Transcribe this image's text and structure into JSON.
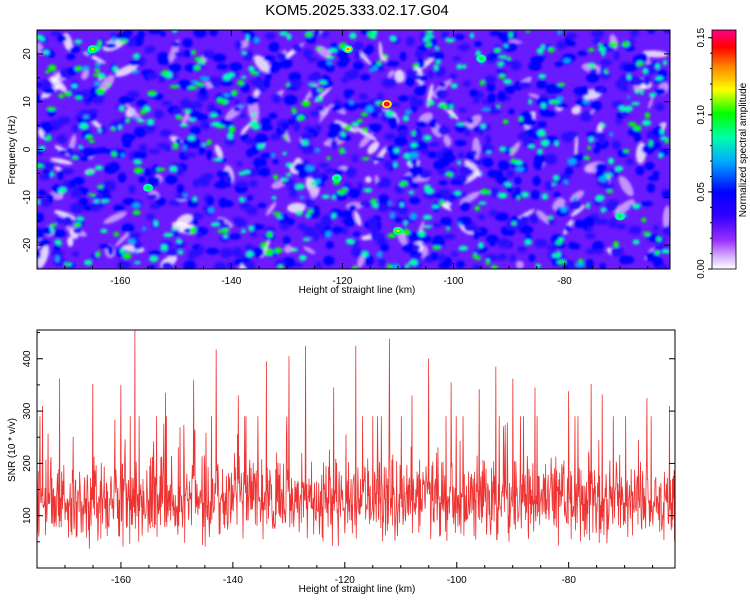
{
  "chart_data": [
    {
      "type": "heatmap",
      "title": "KOM5.2025.333.02.17.G04",
      "xlabel": "Height of straight line (km)",
      "ylabel": "Frequency (Hz)",
      "xlim": [
        -175,
        -61
      ],
      "ylim": [
        -25,
        25
      ],
      "xticks": [
        "-160",
        "-140",
        "-120",
        "-100",
        "-80"
      ],
      "xtick_values": [
        -160,
        -140,
        -120,
        -100,
        -80
      ],
      "yticks": [
        "-20",
        "-10",
        "0",
        "10",
        "20"
      ],
      "ytick_values": [
        -20,
        -10,
        0,
        10,
        20
      ],
      "colorbar": {
        "label": "Normalized spectral amplitude",
        "range": [
          0.0,
          0.155
        ],
        "ticks": [
          "0.00",
          "0.05",
          "0.10",
          "0.15"
        ],
        "tick_values": [
          0.0,
          0.05,
          0.1,
          0.15
        ],
        "colormap": [
          "#ffffff",
          "#9b30ff",
          "#3300ff",
          "#0000ff",
          "#00aaff",
          "#00ffaa",
          "#00ff00",
          "#ffff00",
          "#ff8000",
          "#ff0000",
          "#ff0088"
        ]
      },
      "values_note": "Dense speckle field of normalized spectral amplitude; background ~0.02-0.04, spots up to ~0.15",
      "peaks": [
        {
          "x": -112,
          "y": 9.5,
          "value": 0.15
        },
        {
          "x": -119,
          "y": 21,
          "value": 0.12
        },
        {
          "x": -165,
          "y": 21,
          "value": 0.11
        },
        {
          "x": -110,
          "y": -17,
          "value": 0.11
        },
        {
          "x": -95,
          "y": 19,
          "value": 0.1
        },
        {
          "x": -121,
          "y": -6,
          "value": 0.1
        },
        {
          "x": -70,
          "y": -14,
          "value": 0.1
        },
        {
          "x": -155,
          "y": -8,
          "value": 0.09
        }
      ]
    },
    {
      "type": "line",
      "title": "",
      "xlabel": "Height of straight line (km)",
      "ylabel": "SNR (10 * v/v)",
      "xlim": [
        -175,
        -61
      ],
      "ylim": [
        0,
        455
      ],
      "xticks": [
        "-160",
        "-140",
        "-120",
        "-100",
        "-80"
      ],
      "xtick_values": [
        -160,
        -140,
        -120,
        -100,
        -80
      ],
      "yticks": [
        "100",
        "200",
        "300",
        "400"
      ],
      "ytick_values": [
        100,
        200,
        300,
        400
      ],
      "series": [
        {
          "name": "SNR",
          "color": "#ee3333",
          "baseline_mean": 130,
          "noise_range": [
            20,
            260
          ]
        }
      ],
      "peaks": [
        {
          "x": -157.5,
          "y": 455
        },
        {
          "x": -112,
          "y": 438
        },
        {
          "x": -127,
          "y": 425
        },
        {
          "x": -118,
          "y": 425
        },
        {
          "x": -143,
          "y": 418
        },
        {
          "x": -130,
          "y": 405
        },
        {
          "x": -105,
          "y": 400
        },
        {
          "x": -134,
          "y": 395
        },
        {
          "x": -93,
          "y": 385
        },
        {
          "x": -171,
          "y": 362
        },
        {
          "x": -90,
          "y": 362
        },
        {
          "x": -147,
          "y": 360
        },
        {
          "x": -101,
          "y": 355
        },
        {
          "x": -165,
          "y": 352
        },
        {
          "x": -76,
          "y": 352
        },
        {
          "x": -160,
          "y": 350
        },
        {
          "x": -122,
          "y": 345
        },
        {
          "x": -86,
          "y": 345
        },
        {
          "x": -96,
          "y": 342
        },
        {
          "x": -80,
          "y": 338
        },
        {
          "x": -152,
          "y": 335
        },
        {
          "x": -74,
          "y": 332
        },
        {
          "x": -139,
          "y": 330
        },
        {
          "x": -108,
          "y": 330
        },
        {
          "x": -66,
          "y": 325
        },
        {
          "x": -174,
          "y": 310
        },
        {
          "x": -62,
          "y": 310
        }
      ]
    }
  ]
}
